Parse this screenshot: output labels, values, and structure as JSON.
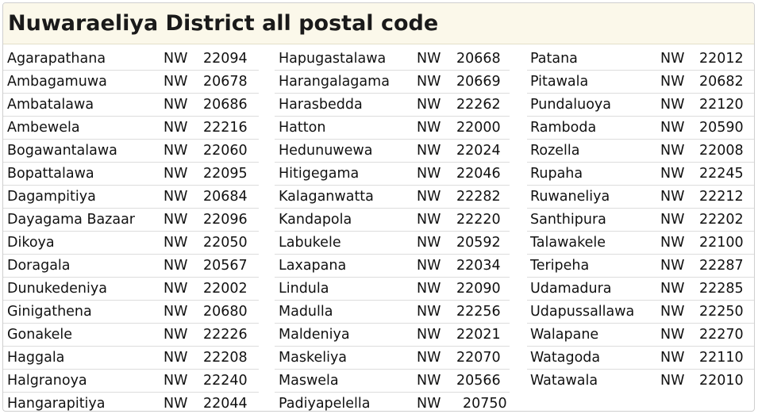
{
  "page": {
    "title": "Nuwaraeliya District all postal code"
  },
  "columns": [
    [
      {
        "name": "Agarapathana",
        "region": "NW",
        "code": "22094"
      },
      {
        "name": "Ambagamuwa",
        "region": "NW",
        "code": "20678"
      },
      {
        "name": "Ambatalawa",
        "region": "NW",
        "code": "20686"
      },
      {
        "name": "Ambewela",
        "region": "NW",
        "code": "22216"
      },
      {
        "name": "Bogawantalawa",
        "region": "NW",
        "code": "22060"
      },
      {
        "name": "Bopattalawa",
        "region": "NW",
        "code": "22095"
      },
      {
        "name": "Dagampitiya",
        "region": "NW",
        "code": "20684"
      },
      {
        "name": "Dayagama Bazaar",
        "region": "NW",
        "code": "22096"
      },
      {
        "name": "Dikoya",
        "region": "NW",
        "code": "22050"
      },
      {
        "name": "Doragala",
        "region": "NW",
        "code": "20567"
      },
      {
        "name": "Dunukedeniya",
        "region": "NW",
        "code": "22002"
      },
      {
        "name": "Ginigathena",
        "region": "NW",
        "code": "20680"
      },
      {
        "name": "Gonakele",
        "region": "NW",
        "code": "22226"
      },
      {
        "name": "Haggala",
        "region": "NW",
        "code": "22208"
      },
      {
        "name": "Halgranoya",
        "region": "NW",
        "code": "22240"
      },
      {
        "name": "Hangarapitiya",
        "region": "NW",
        "code": "22044"
      }
    ],
    [
      {
        "name": "Hapugastalawa",
        "region": "NW",
        "code": "20668"
      },
      {
        "name": "Harangalagama",
        "region": "NW",
        "code": "20669"
      },
      {
        "name": "Harasbedda",
        "region": "NW",
        "code": "22262"
      },
      {
        "name": "Hatton",
        "region": "NW",
        "code": "22000"
      },
      {
        "name": "Hedunuwewa",
        "region": "NW",
        "code": "22024"
      },
      {
        "name": "Hitigegama",
        "region": "NW",
        "code": "22046"
      },
      {
        "name": "Kalaganwatta",
        "region": "NW",
        "code": "22282"
      },
      {
        "name": "Kandapola",
        "region": "NW",
        "code": "22220"
      },
      {
        "name": "Labukele",
        "region": "NW",
        "code": "20592"
      },
      {
        "name": "Laxapana",
        "region": "NW",
        "code": "22034"
      },
      {
        "name": "Lindula",
        "region": "NW",
        "code": "22090"
      },
      {
        "name": "Madulla",
        "region": "NW",
        "code": "22256"
      },
      {
        "name": "Maldeniya",
        "region": "NW",
        "code": "22021"
      },
      {
        "name": "Maskeliya",
        "region": "NW",
        "code": "22070"
      },
      {
        "name": "Maswela",
        "region": "NW",
        "code": "20566"
      },
      {
        "name": "Padiyapelella",
        "region": "NW",
        "code": "20750"
      }
    ],
    [
      {
        "name": "Patana",
        "region": "NW",
        "code": "22012"
      },
      {
        "name": "Pitawala",
        "region": "NW",
        "code": "20682"
      },
      {
        "name": "Pundaluoya",
        "region": "NW",
        "code": "22120"
      },
      {
        "name": "Ramboda",
        "region": "NW",
        "code": "20590"
      },
      {
        "name": "Rozella",
        "region": "NW",
        "code": "22008"
      },
      {
        "name": "Rupaha",
        "region": "NW",
        "code": "22245"
      },
      {
        "name": "Ruwaneliya",
        "region": "NW",
        "code": "22212"
      },
      {
        "name": "Santhipura",
        "region": "NW",
        "code": "22202"
      },
      {
        "name": "Talawakele",
        "region": "NW",
        "code": "22100"
      },
      {
        "name": "Teripeha",
        "region": "NW",
        "code": "22287"
      },
      {
        "name": "Udamadura",
        "region": "NW",
        "code": "22285"
      },
      {
        "name": "Udapussallawa",
        "region": "NW",
        "code": "22250"
      },
      {
        "name": "Walapane",
        "region": "NW",
        "code": "22270"
      },
      {
        "name": "Watagoda",
        "region": "NW",
        "code": "22110"
      },
      {
        "name": "Watawala",
        "region": "NW",
        "code": "22010"
      }
    ]
  ]
}
